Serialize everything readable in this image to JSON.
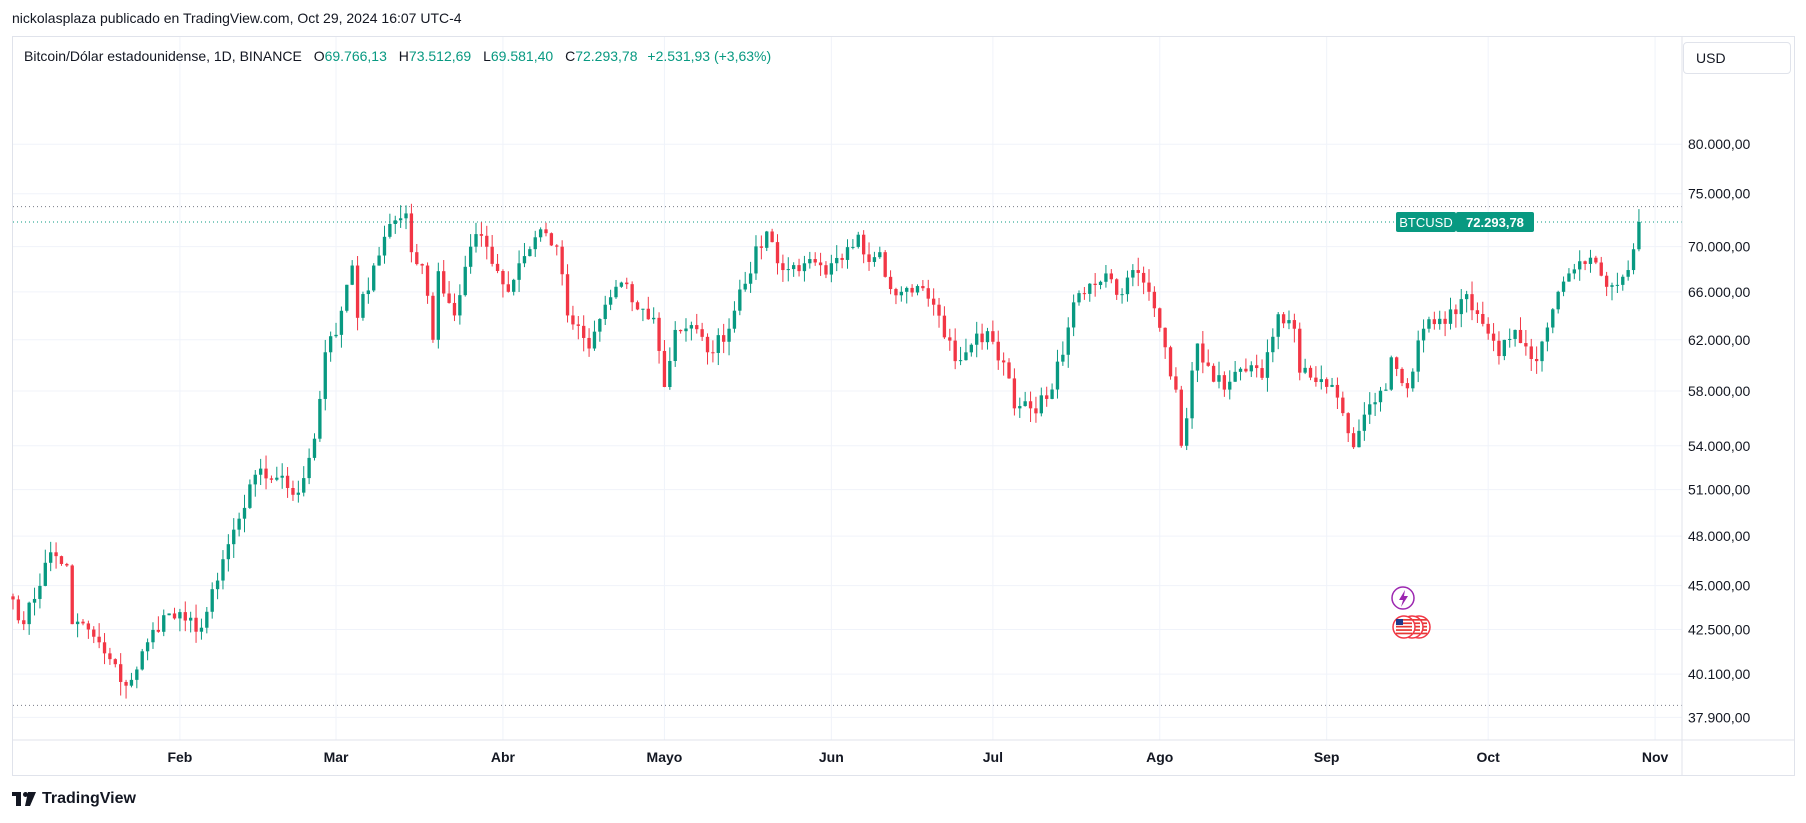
{
  "publisher_line": "nickolasplaza publicado en TradingView.com, Oct 29, 2024 16:07 UTC-4",
  "legend": {
    "symbol": "Bitcoin/Dólar estadounidense, 1D, BINANCE",
    "open_label": "O",
    "open": "69.766,13",
    "high_label": "H",
    "high": "73.512,69",
    "low_label": "L",
    "low": "69.581,40",
    "close_label": "C",
    "close": "72.293,78",
    "change": "+2.531,93 (+3,63%)"
  },
  "currency_button": "USD",
  "footer": {
    "brand": "TradingView",
    "logo_icon": "tradingview-logo-icon"
  },
  "icons": {
    "event_lightning": "lightning-icon",
    "event_flags": "us-flag-icon"
  },
  "colors": {
    "up": "#089981",
    "down": "#f23645",
    "grid": "#f0f3fa",
    "text": "#131722",
    "price_tag": "#089981"
  },
  "chart_data": {
    "type": "candlestick",
    "title": "Bitcoin/Dólar estadounidense, 1D, BINANCE",
    "y_axis": {
      "scale": "log",
      "ticks": [
        37900,
        40100,
        42500,
        45000,
        48000,
        51000,
        54000,
        58000,
        62000,
        66000,
        70000,
        75000,
        80000
      ],
      "tick_labels": [
        "37.900,00",
        "40.100,00",
        "42.500,00",
        "45.000,00",
        "48.000,00",
        "51.000,00",
        "54.000,00",
        "58.000,00",
        "62.000,00",
        "66.000,00",
        "70.000,00",
        "75.000,00",
        "80.000,00"
      ],
      "range": [
        36800,
        92000
      ]
    },
    "x_axis": {
      "range": [
        "2024-01-01",
        "2024-11-06"
      ],
      "ticks": [
        "2024-02-01",
        "2024-03-01",
        "2024-04-01",
        "2024-05-01",
        "2024-06-01",
        "2024-07-01",
        "2024-08-01",
        "2024-09-01",
        "2024-10-01",
        "2024-11-01"
      ],
      "tick_labels": [
        "Feb",
        "Mar",
        "Abr",
        "Mayo",
        "Jun",
        "Jul",
        "Ago",
        "Sep",
        "Oct",
        "Nov"
      ]
    },
    "price_tag": {
      "label": "BTCUSD",
      "value": 72293.78,
      "value_label": "72.293,78"
    },
    "reference_lines": [
      73750,
      72293.78,
      38500
    ],
    "close_path": [
      [
        "2024-01-01",
        44200
      ],
      [
        "2024-01-03",
        42800
      ],
      [
        "2024-01-08",
        47000
      ],
      [
        "2024-01-11",
        46200
      ],
      [
        "2024-01-12",
        42800
      ],
      [
        "2024-01-15",
        42500
      ],
      [
        "2024-01-18",
        41200
      ],
      [
        "2024-01-22",
        39500
      ],
      [
        "2024-01-23",
        39800
      ],
      [
        "2024-01-26",
        41800
      ],
      [
        "2024-01-29",
        43300
      ],
      [
        "2024-02-02",
        43000
      ],
      [
        "2024-02-05",
        42600
      ],
      [
        "2024-02-08",
        45300
      ],
      [
        "2024-02-10",
        47500
      ],
      [
        "2024-02-13",
        49800
      ],
      [
        "2024-02-15",
        52000
      ],
      [
        "2024-02-19",
        51800
      ],
      [
        "2024-02-23",
        50800
      ],
      [
        "2024-02-26",
        54500
      ],
      [
        "2024-02-28",
        61000
      ],
      [
        "2024-03-01",
        62400
      ],
      [
        "2024-03-04",
        68300
      ],
      [
        "2024-03-05",
        63800
      ],
      [
        "2024-03-08",
        68300
      ],
      [
        "2024-03-11",
        72100
      ],
      [
        "2024-03-14",
        73100
      ],
      [
        "2024-03-15",
        69500
      ],
      [
        "2024-03-17",
        68300
      ],
      [
        "2024-03-19",
        62000
      ],
      [
        "2024-03-20",
        67800
      ],
      [
        "2024-03-23",
        64000
      ],
      [
        "2024-03-26",
        70000
      ],
      [
        "2024-03-28",
        71000
      ],
      [
        "2024-04-02",
        66000
      ],
      [
        "2024-04-04",
        68500
      ],
      [
        "2024-04-08",
        71600
      ],
      [
        "2024-04-11",
        70000
      ],
      [
        "2024-04-13",
        64000
      ],
      [
        "2024-04-17",
        61300
      ],
      [
        "2024-04-20",
        64900
      ],
      [
        "2024-04-23",
        66800
      ],
      [
        "2024-04-26",
        64500
      ],
      [
        "2024-04-29",
        63800
      ],
      [
        "2024-05-01",
        58300
      ],
      [
        "2024-05-03",
        62800
      ],
      [
        "2024-05-06",
        63200
      ],
      [
        "2024-05-09",
        61000
      ],
      [
        "2024-05-13",
        62900
      ],
      [
        "2024-05-15",
        66200
      ],
      [
        "2024-05-20",
        71400
      ],
      [
        "2024-05-23",
        67900
      ],
      [
        "2024-05-27",
        68500
      ],
      [
        "2024-05-31",
        67500
      ],
      [
        "2024-06-03",
        68800
      ],
      [
        "2024-06-06",
        71100
      ],
      [
        "2024-06-07",
        69300
      ],
      [
        "2024-06-10",
        69500
      ],
      [
        "2024-06-11",
        67300
      ],
      [
        "2024-06-14",
        66000
      ],
      [
        "2024-06-17",
        66500
      ],
      [
        "2024-06-20",
        64900
      ],
      [
        "2024-06-24",
        60300
      ],
      [
        "2024-06-27",
        61600
      ],
      [
        "2024-06-30",
        62700
      ],
      [
        "2024-07-03",
        60200
      ],
      [
        "2024-07-05",
        56700
      ],
      [
        "2024-07-08",
        56700
      ],
      [
        "2024-07-11",
        57400
      ],
      [
        "2024-07-14",
        60800
      ],
      [
        "2024-07-16",
        65100
      ],
      [
        "2024-07-19",
        66700
      ],
      [
        "2024-07-22",
        67600
      ],
      [
        "2024-07-25",
        65800
      ],
      [
        "2024-07-27",
        67900
      ],
      [
        "2024-07-29",
        66800
      ],
      [
        "2024-07-31",
        64600
      ],
      [
        "2024-08-02",
        61400
      ],
      [
        "2024-08-04",
        58100
      ],
      [
        "2024-08-05",
        54000
      ],
      [
        "2024-08-08",
        61700
      ],
      [
        "2024-08-11",
        58700
      ],
      [
        "2024-08-14",
        58700
      ],
      [
        "2024-08-17",
        59500
      ],
      [
        "2024-08-20",
        59000
      ],
      [
        "2024-08-23",
        64100
      ],
      [
        "2024-08-26",
        62900
      ],
      [
        "2024-08-27",
        59400
      ],
      [
        "2024-08-31",
        58900
      ],
      [
        "2024-09-03",
        57500
      ],
      [
        "2024-09-06",
        53900
      ],
      [
        "2024-09-09",
        57000
      ],
      [
        "2024-09-12",
        58100
      ],
      [
        "2024-09-13",
        60600
      ],
      [
        "2024-09-16",
        58200
      ],
      [
        "2024-09-19",
        62900
      ],
      [
        "2024-09-23",
        63300
      ],
      [
        "2024-09-27",
        65800
      ],
      [
        "2024-09-30",
        63300
      ],
      [
        "2024-10-03",
        60700
      ],
      [
        "2024-10-06",
        62800
      ],
      [
        "2024-10-10",
        60300
      ],
      [
        "2024-10-12",
        63000
      ],
      [
        "2024-10-14",
        66000
      ],
      [
        "2024-10-16",
        67600
      ],
      [
        "2024-10-20",
        69000
      ],
      [
        "2024-10-22",
        67400
      ],
      [
        "2024-10-25",
        66600
      ],
      [
        "2024-10-27",
        67900
      ],
      [
        "2024-10-28",
        69766
      ],
      [
        "2024-10-29",
        72294
      ]
    ]
  }
}
